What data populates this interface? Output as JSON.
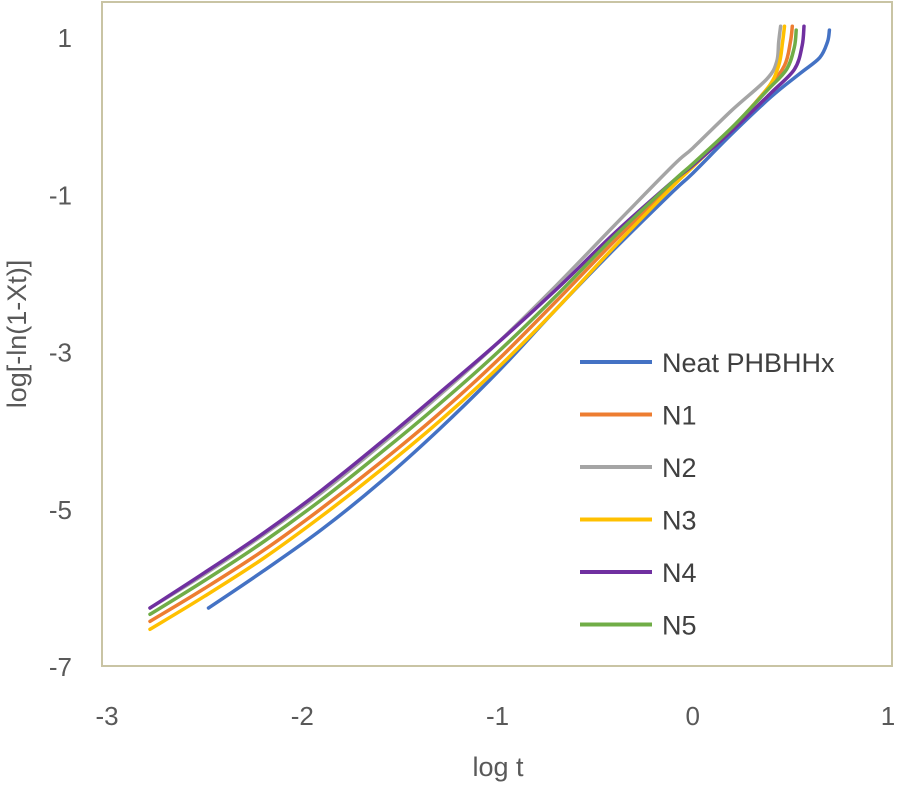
{
  "chart_data": {
    "type": "line",
    "title": "",
    "xlabel": "log t",
    "ylabel": "log[-ln(1-Xt)]",
    "xlim": [
      -3,
      1
    ],
    "ylim": [
      -7,
      1.5
    ],
    "x_ticks": [
      -3,
      -2,
      -1,
      0,
      1
    ],
    "y_ticks": [
      1,
      -1,
      -3,
      -5,
      -7
    ],
    "x_tick_labels": [
      "-3",
      "-2",
      "-1",
      "0",
      "1"
    ],
    "y_tick_labels": [
      "1",
      "-1",
      "-3",
      "-5",
      "-7"
    ],
    "grid": false,
    "legend": "right",
    "plot_border_color": "#c9c4a4",
    "series": [
      {
        "name": "Neat PHBHHx",
        "color": "#4472c4",
        "x": [
          -2.48,
          -2.2,
          -1.9,
          -1.6,
          -1.3,
          -1.0,
          -0.7,
          -0.4,
          -0.1,
          0.0,
          0.2,
          0.4,
          0.55,
          0.65,
          0.69,
          0.7
        ],
        "y": [
          -6.25,
          -5.78,
          -5.25,
          -4.65,
          -3.98,
          -3.25,
          -2.45,
          -1.68,
          -0.95,
          -0.72,
          -0.22,
          0.25,
          0.55,
          0.75,
          0.95,
          1.1
        ]
      },
      {
        "name": "N1",
        "color": "#ed7d31",
        "x": [
          -2.78,
          -2.5,
          -2.2,
          -1.9,
          -1.6,
          -1.3,
          -1.0,
          -0.7,
          -0.4,
          -0.1,
          0.0,
          0.2,
          0.38,
          0.47,
          0.5,
          0.51
        ],
        "y": [
          -6.42,
          -6.0,
          -5.52,
          -4.98,
          -4.4,
          -3.78,
          -3.1,
          -2.35,
          -1.58,
          -0.85,
          -0.62,
          -0.15,
          0.35,
          0.65,
          0.95,
          1.15
        ]
      },
      {
        "name": "N2",
        "color": "#a5a5a5",
        "x": [
          -2.78,
          -2.5,
          -2.2,
          -1.9,
          -1.6,
          -1.3,
          -1.0,
          -0.7,
          -0.4,
          -0.1,
          0.0,
          0.2,
          0.38,
          0.43,
          0.44,
          0.45
        ],
        "y": [
          -6.25,
          -5.82,
          -5.32,
          -4.78,
          -4.18,
          -3.55,
          -2.88,
          -2.15,
          -1.38,
          -0.62,
          -0.4,
          0.08,
          0.48,
          0.7,
          0.95,
          1.15
        ]
      },
      {
        "name": "N3",
        "color": "#ffc000",
        "x": [
          -2.78,
          -2.5,
          -2.2,
          -1.9,
          -1.6,
          -1.3,
          -1.0,
          -0.7,
          -0.4,
          -0.1,
          0.0,
          0.2,
          0.38,
          0.44,
          0.46,
          0.47
        ],
        "y": [
          -6.52,
          -6.1,
          -5.62,
          -5.08,
          -4.5,
          -3.88,
          -3.2,
          -2.45,
          -1.65,
          -0.88,
          -0.64,
          -0.15,
          0.35,
          0.65,
          0.95,
          1.15
        ]
      },
      {
        "name": "N4",
        "color": "#7030a0",
        "x": [
          -2.78,
          -2.5,
          -2.2,
          -1.9,
          -1.6,
          -1.3,
          -1.0,
          -0.7,
          -0.4,
          -0.1,
          0.0,
          0.2,
          0.4,
          0.52,
          0.56,
          0.57
        ],
        "y": [
          -6.25,
          -5.8,
          -5.3,
          -4.75,
          -4.15,
          -3.52,
          -2.88,
          -2.2,
          -1.48,
          -0.82,
          -0.62,
          -0.18,
          0.3,
          0.6,
          0.9,
          1.15
        ]
      },
      {
        "name": "N5",
        "color": "#70ad47",
        "x": [
          -2.78,
          -2.5,
          -2.2,
          -1.9,
          -1.6,
          -1.3,
          -1.0,
          -0.7,
          -0.4,
          -0.1,
          0.0,
          0.2,
          0.38,
          0.48,
          0.52,
          0.53
        ],
        "y": [
          -6.33,
          -5.9,
          -5.41,
          -4.87,
          -4.28,
          -3.66,
          -3.0,
          -2.28,
          -1.52,
          -0.82,
          -0.6,
          -0.14,
          0.33,
          0.6,
          0.88,
          1.1
        ]
      }
    ]
  }
}
